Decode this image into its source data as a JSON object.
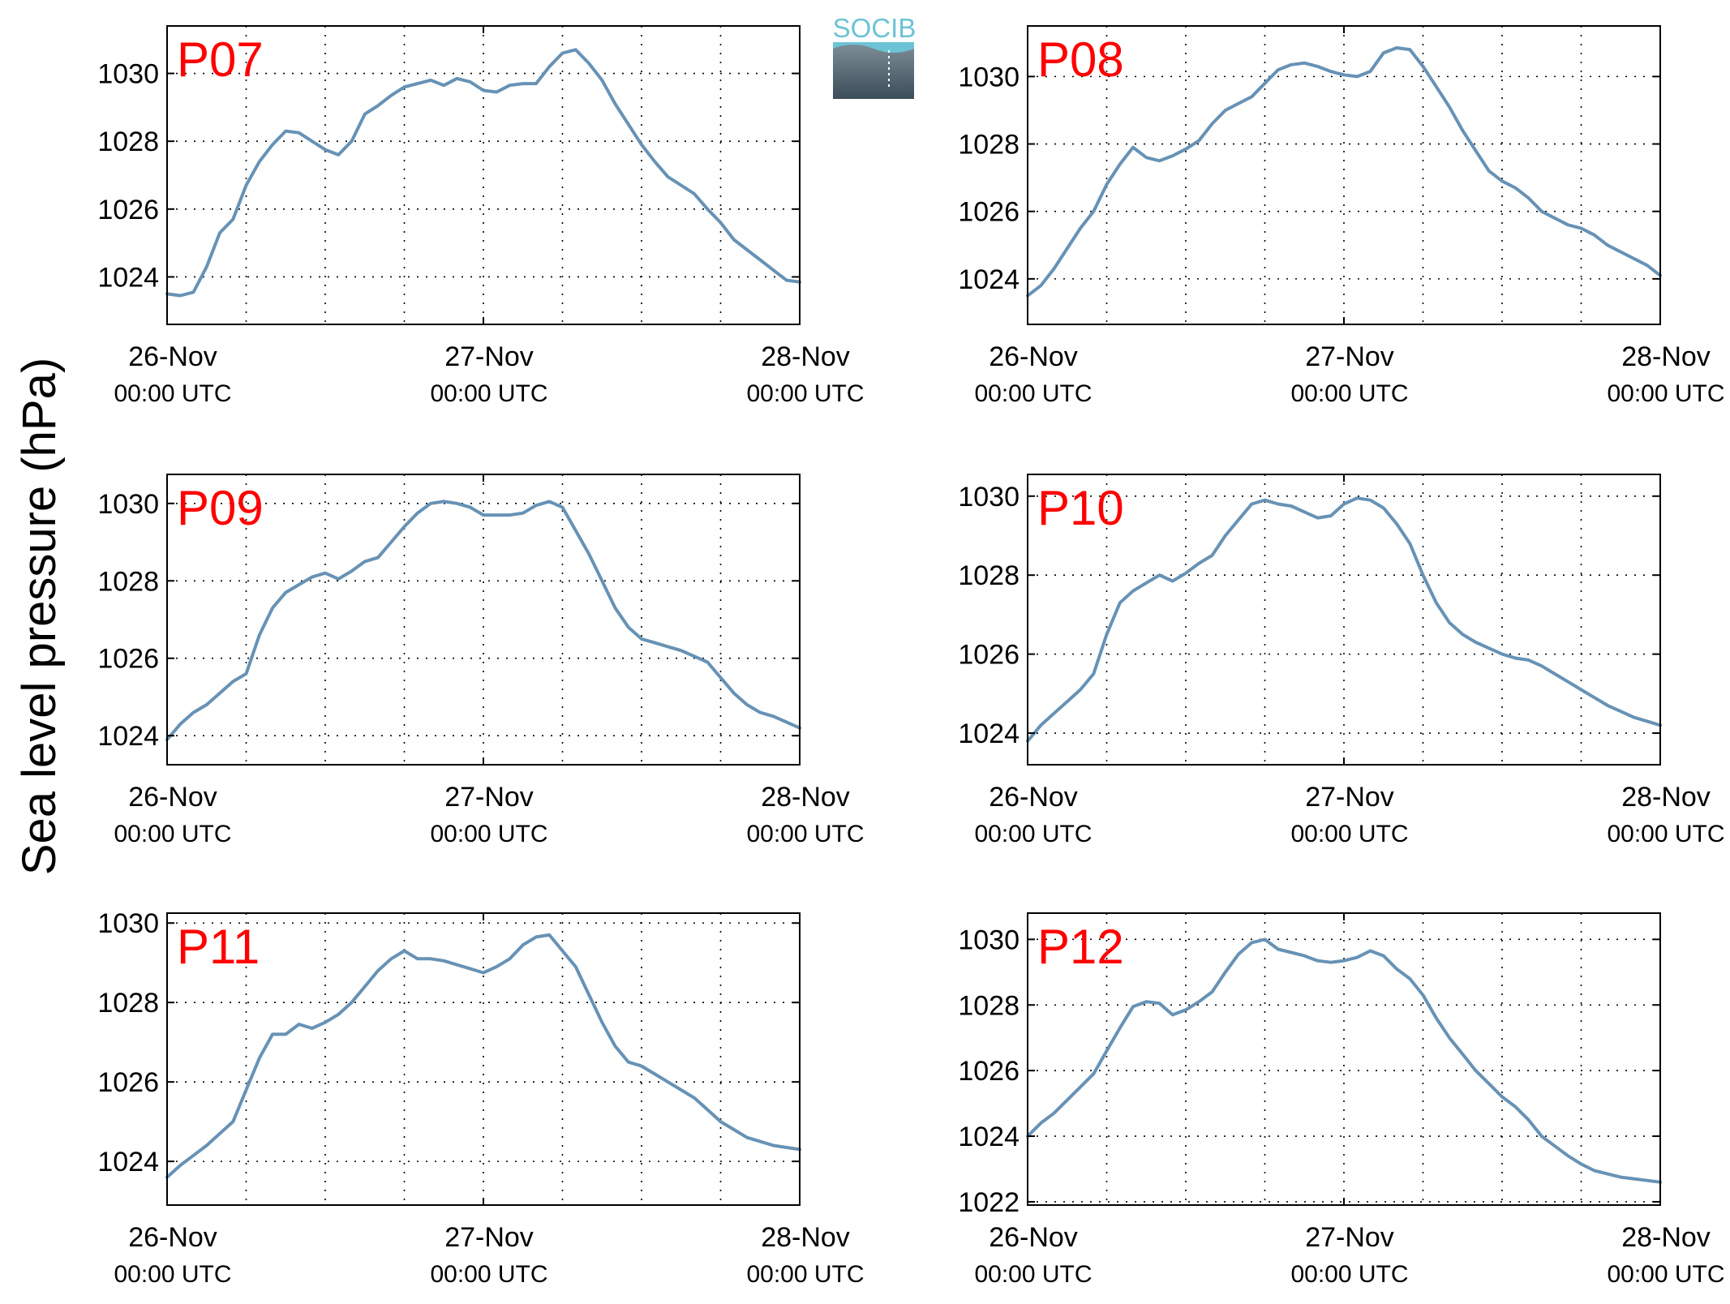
{
  "figure": {
    "ylabel": "Sea level pressure (hPa)",
    "line_color": "#6792b5",
    "label_color": "#ff0000",
    "grid": "dotted",
    "logo": {
      "text": "SOCIB",
      "text_color": "#6cc3d5",
      "gradient_top": "#7f8f99",
      "gradient_bottom": "#3b4d59"
    }
  },
  "chart_data": [
    {
      "type": "line",
      "label": "P07",
      "x_ticks": [
        {
          "line1": "26-Nov",
          "line2": "00:00 UTC"
        },
        {
          "line1": "27-Nov",
          "line2": "00:00 UTC"
        },
        {
          "line1": "28-Nov",
          "line2": "00:00 UTC"
        }
      ],
      "xlim_hours": [
        0,
        48
      ],
      "ylim": [
        1022.6,
        1031.4
      ],
      "y_ticks": [
        1024,
        1026,
        1028,
        1030
      ],
      "series": [
        {
          "x_hours": [
            0,
            1,
            2,
            3,
            4,
            5,
            6,
            7,
            8,
            9,
            10,
            11,
            12,
            13,
            14,
            15,
            16,
            17,
            18,
            19,
            20,
            21,
            22,
            23,
            24,
            25,
            26,
            27,
            28,
            29,
            30,
            31,
            32,
            33,
            34,
            35,
            36,
            37,
            38,
            39,
            40,
            41,
            42,
            43,
            44,
            45,
            46,
            47,
            48
          ],
          "values": [
            1023.5,
            1023.45,
            1023.55,
            1024.3,
            1025.3,
            1025.7,
            1026.7,
            1027.4,
            1027.9,
            1028.3,
            1028.25,
            1028.0,
            1027.75,
            1027.6,
            1028.0,
            1028.8,
            1029.05,
            1029.35,
            1029.6,
            1029.7,
            1029.8,
            1029.65,
            1029.85,
            1029.75,
            1029.5,
            1029.45,
            1029.65,
            1029.7,
            1029.7,
            1030.2,
            1030.6,
            1030.7,
            1030.3,
            1029.8,
            1029.1,
            1028.5,
            1027.9,
            1027.4,
            1026.95,
            1026.7,
            1026.45,
            1026.0,
            1025.6,
            1025.1,
            1024.8,
            1024.5,
            1024.2,
            1023.9,
            1023.85
          ]
        }
      ]
    },
    {
      "type": "line",
      "label": "P08",
      "x_ticks": [
        {
          "line1": "26-Nov",
          "line2": "00:00 UTC"
        },
        {
          "line1": "27-Nov",
          "line2": "00:00 UTC"
        },
        {
          "line1": "28-Nov",
          "line2": "00:00 UTC"
        }
      ],
      "xlim_hours": [
        0,
        48
      ],
      "ylim": [
        1022.65,
        1031.5
      ],
      "y_ticks": [
        1024,
        1026,
        1028,
        1030
      ],
      "series": [
        {
          "x_hours": [
            0,
            1,
            2,
            3,
            4,
            5,
            6,
            7,
            8,
            9,
            10,
            11,
            12,
            13,
            14,
            15,
            16,
            17,
            18,
            19,
            20,
            21,
            22,
            23,
            24,
            25,
            26,
            27,
            28,
            29,
            30,
            31,
            32,
            33,
            34,
            35,
            36,
            37,
            38,
            39,
            40,
            41,
            42,
            43,
            44,
            45,
            46,
            47,
            48
          ],
          "values": [
            1023.5,
            1023.8,
            1024.3,
            1024.9,
            1025.5,
            1026.0,
            1026.8,
            1027.4,
            1027.9,
            1027.6,
            1027.5,
            1027.65,
            1027.85,
            1028.1,
            1028.6,
            1029.0,
            1029.2,
            1029.4,
            1029.8,
            1030.2,
            1030.35,
            1030.4,
            1030.3,
            1030.15,
            1030.05,
            1030.0,
            1030.15,
            1030.7,
            1030.85,
            1030.8,
            1030.3,
            1029.7,
            1029.1,
            1028.4,
            1027.8,
            1027.2,
            1026.9,
            1026.7,
            1026.4,
            1026.0,
            1025.8,
            1025.6,
            1025.5,
            1025.3,
            1025.0,
            1024.8,
            1024.6,
            1024.4,
            1024.1
          ]
        }
      ]
    },
    {
      "type": "line",
      "label": "P09",
      "x_ticks": [
        {
          "line1": "26-Nov",
          "line2": "00:00 UTC"
        },
        {
          "line1": "27-Nov",
          "line2": "00:00 UTC"
        },
        {
          "line1": "28-Nov",
          "line2": "00:00 UTC"
        }
      ],
      "xlim_hours": [
        0,
        48
      ],
      "ylim": [
        1023.25,
        1030.75
      ],
      "y_ticks": [
        1024,
        1026,
        1028,
        1030
      ],
      "series": [
        {
          "x_hours": [
            0,
            1,
            2,
            3,
            4,
            5,
            6,
            7,
            8,
            9,
            10,
            11,
            12,
            13,
            14,
            15,
            16,
            17,
            18,
            19,
            20,
            21,
            22,
            23,
            24,
            25,
            26,
            27,
            28,
            29,
            30,
            31,
            32,
            33,
            34,
            35,
            36,
            37,
            38,
            39,
            40,
            41,
            42,
            43,
            44,
            45,
            46,
            47,
            48
          ],
          "values": [
            1023.9,
            1024.3,
            1024.6,
            1024.8,
            1025.1,
            1025.4,
            1025.6,
            1026.6,
            1027.3,
            1027.7,
            1027.9,
            1028.1,
            1028.2,
            1028.05,
            1028.25,
            1028.5,
            1028.6,
            1029.0,
            1029.4,
            1029.75,
            1030.0,
            1030.05,
            1030.0,
            1029.9,
            1029.7,
            1029.7,
            1029.7,
            1029.75,
            1029.95,
            1030.05,
            1029.9,
            1029.3,
            1028.7,
            1028.0,
            1027.3,
            1026.8,
            1026.5,
            1026.4,
            1026.3,
            1026.2,
            1026.05,
            1025.9,
            1025.5,
            1025.1,
            1024.8,
            1024.6,
            1024.5,
            1024.35,
            1024.2
          ]
        }
      ]
    },
    {
      "type": "line",
      "label": "P10",
      "x_ticks": [
        {
          "line1": "26-Nov",
          "line2": "00:00 UTC"
        },
        {
          "line1": "27-Nov",
          "line2": "00:00 UTC"
        },
        {
          "line1": "28-Nov",
          "line2": "00:00 UTC"
        }
      ],
      "xlim_hours": [
        0,
        48
      ],
      "ylim": [
        1023.2,
        1030.55
      ],
      "y_ticks": [
        1024,
        1026,
        1028,
        1030
      ],
      "series": [
        {
          "x_hours": [
            0,
            1,
            2,
            3,
            4,
            5,
            6,
            7,
            8,
            9,
            10,
            11,
            12,
            13,
            14,
            15,
            16,
            17,
            18,
            19,
            20,
            21,
            22,
            23,
            24,
            25,
            26,
            27,
            28,
            29,
            30,
            31,
            32,
            33,
            34,
            35,
            36,
            37,
            38,
            39,
            40,
            41,
            42,
            43,
            44,
            45,
            46,
            47,
            48
          ],
          "values": [
            1023.8,
            1024.2,
            1024.5,
            1024.8,
            1025.1,
            1025.5,
            1026.5,
            1027.3,
            1027.6,
            1027.8,
            1028.0,
            1027.85,
            1028.05,
            1028.3,
            1028.5,
            1029.0,
            1029.4,
            1029.8,
            1029.9,
            1029.8,
            1029.75,
            1029.6,
            1029.45,
            1029.5,
            1029.8,
            1029.95,
            1029.9,
            1029.7,
            1029.3,
            1028.8,
            1028.0,
            1027.3,
            1026.8,
            1026.5,
            1026.3,
            1026.15,
            1026.0,
            1025.9,
            1025.85,
            1025.7,
            1025.5,
            1025.3,
            1025.1,
            1024.9,
            1024.7,
            1024.55,
            1024.4,
            1024.3,
            1024.2
          ]
        }
      ]
    },
    {
      "type": "line",
      "label": "P11",
      "x_ticks": [
        {
          "line1": "26-Nov",
          "line2": "00:00 UTC"
        },
        {
          "line1": "27-Nov",
          "line2": "00:00 UTC"
        },
        {
          "line1": "28-Nov",
          "line2": "00:00 UTC"
        }
      ],
      "xlim_hours": [
        0,
        48
      ],
      "ylim": [
        1022.9,
        1030.25
      ],
      "y_ticks": [
        1024,
        1026,
        1028,
        1030
      ],
      "series": [
        {
          "x_hours": [
            0,
            1,
            2,
            3,
            4,
            5,
            6,
            7,
            8,
            9,
            10,
            11,
            12,
            13,
            14,
            15,
            16,
            17,
            18,
            19,
            20,
            21,
            22,
            23,
            24,
            25,
            26,
            27,
            28,
            29,
            30,
            31,
            32,
            33,
            34,
            35,
            36,
            37,
            38,
            39,
            40,
            41,
            42,
            43,
            44,
            45,
            46,
            47,
            48
          ],
          "values": [
            1023.6,
            1023.9,
            1024.15,
            1024.4,
            1024.7,
            1025.0,
            1025.8,
            1026.6,
            1027.2,
            1027.2,
            1027.45,
            1027.35,
            1027.5,
            1027.7,
            1028.0,
            1028.4,
            1028.8,
            1029.1,
            1029.3,
            1029.1,
            1029.1,
            1029.05,
            1028.95,
            1028.85,
            1028.75,
            1028.9,
            1029.1,
            1029.45,
            1029.65,
            1029.7,
            1029.3,
            1028.9,
            1028.2,
            1027.5,
            1026.9,
            1026.5,
            1026.4,
            1026.2,
            1026.0,
            1025.8,
            1025.6,
            1025.3,
            1025.0,
            1024.8,
            1024.6,
            1024.5,
            1024.4,
            1024.35,
            1024.3
          ]
        }
      ]
    },
    {
      "type": "line",
      "label": "P12",
      "x_ticks": [
        {
          "line1": "26-Nov",
          "line2": "00:00 UTC"
        },
        {
          "line1": "27-Nov",
          "line2": "00:00 UTC"
        },
        {
          "line1": "28-Nov",
          "line2": "00:00 UTC"
        }
      ],
      "xlim_hours": [
        0,
        48
      ],
      "ylim": [
        1021.9,
        1030.8
      ],
      "y_ticks": [
        1022,
        1024,
        1026,
        1028,
        1030
      ],
      "series": [
        {
          "x_hours": [
            0,
            1,
            2,
            3,
            4,
            5,
            6,
            7,
            8,
            9,
            10,
            11,
            12,
            13,
            14,
            15,
            16,
            17,
            18,
            19,
            20,
            21,
            22,
            23,
            24,
            25,
            26,
            27,
            28,
            29,
            30,
            31,
            32,
            33,
            34,
            35,
            36,
            37,
            38,
            39,
            40,
            41,
            42,
            43,
            44,
            45,
            46,
            47,
            48
          ],
          "values": [
            1024.0,
            1024.4,
            1024.7,
            1025.1,
            1025.5,
            1025.9,
            1026.6,
            1027.3,
            1027.95,
            1028.1,
            1028.05,
            1027.7,
            1027.85,
            1028.1,
            1028.4,
            1029.0,
            1029.55,
            1029.9,
            1030.0,
            1029.7,
            1029.6,
            1029.5,
            1029.35,
            1029.3,
            1029.35,
            1029.45,
            1029.65,
            1029.5,
            1029.1,
            1028.8,
            1028.3,
            1027.6,
            1027.0,
            1026.5,
            1026.0,
            1025.6,
            1025.2,
            1024.9,
            1024.5,
            1024.0,
            1023.7,
            1023.4,
            1023.15,
            1022.95,
            1022.85,
            1022.75,
            1022.7,
            1022.65,
            1022.6
          ]
        }
      ]
    }
  ]
}
